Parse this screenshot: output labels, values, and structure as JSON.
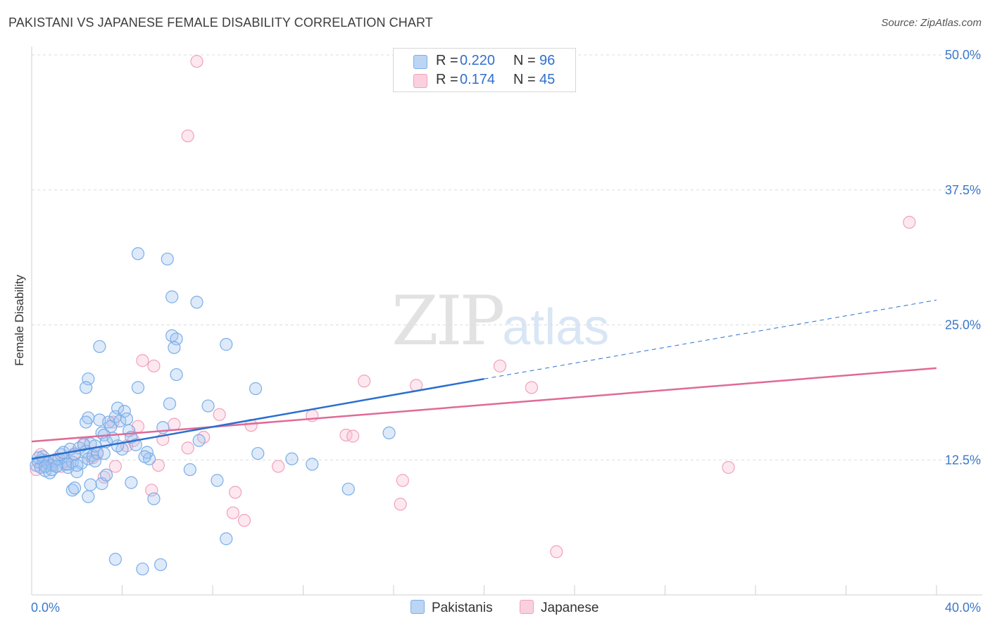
{
  "title": "PAKISTANI VS JAPANESE FEMALE DISABILITY CORRELATION CHART",
  "source": "Source: ZipAtlas.com",
  "watermark": {
    "zip": "ZIP",
    "atlas": "atlas"
  },
  "colors": {
    "pakistanis": "#7aaee8",
    "japanese": "#f2a0bb",
    "blue_line": "#2a6fcf",
    "pink_line": "#e06a97",
    "tick": "#3b78c9"
  },
  "legend": {
    "rows": [
      {
        "r_label": "R =",
        "r_value": "0.220",
        "n_label": "N =",
        "n_value": "96"
      },
      {
        "r_label": "R =",
        "r_value": "0.174",
        "n_label": "N =",
        "n_value": "45"
      }
    ],
    "series_labels": [
      "Pakistanis",
      "Japanese"
    ]
  },
  "chart_data": {
    "type": "scatter",
    "ylabel": "Female Disability",
    "xlim": [
      0,
      40
    ],
    "ylim": [
      0,
      50
    ],
    "x_tick_labels": [
      "0.0%",
      "40.0%"
    ],
    "y_ticks": [
      12.5,
      25.0,
      37.5,
      50.0
    ],
    "y_tick_labels": [
      "12.5%",
      "25.0%",
      "37.5%",
      "50.0%"
    ],
    "series": [
      {
        "name": "Pakistanis",
        "trend": {
          "x0": 0,
          "y0": 12.6,
          "x1": 20,
          "y1": 20.0,
          "dashed_to_x": 40,
          "dashed_to_y": 27.3
        },
        "points": [
          [
            0.2,
            12.0
          ],
          [
            0.3,
            12.3
          ],
          [
            0.4,
            11.8
          ],
          [
            0.5,
            12.5
          ],
          [
            0.6,
            11.5
          ],
          [
            0.7,
            12.2
          ],
          [
            0.8,
            11.3
          ],
          [
            0.9,
            12.0
          ],
          [
            1.0,
            12.4
          ],
          [
            1.1,
            11.9
          ],
          [
            1.2,
            12.6
          ],
          [
            1.3,
            13.0
          ],
          [
            1.4,
            13.2
          ],
          [
            1.5,
            12.1
          ],
          [
            1.6,
            11.8
          ],
          [
            1.7,
            13.5
          ],
          [
            1.8,
            12.3
          ],
          [
            1.9,
            13.0
          ],
          [
            2.0,
            11.4
          ],
          [
            2.1,
            13.6
          ],
          [
            2.2,
            12.2
          ],
          [
            2.3,
            13.9
          ],
          [
            2.4,
            13.3
          ],
          [
            2.5,
            12.6
          ],
          [
            2.6,
            14.0
          ],
          [
            2.7,
            12.9
          ],
          [
            2.8,
            13.8
          ],
          [
            2.9,
            13.1
          ],
          [
            3.0,
            16.2
          ],
          [
            3.1,
            15.0
          ],
          [
            3.2,
            14.8
          ],
          [
            3.3,
            14.2
          ],
          [
            3.4,
            16.0
          ],
          [
            3.5,
            15.6
          ],
          [
            3.6,
            14.5
          ],
          [
            3.7,
            16.5
          ],
          [
            3.8,
            17.3
          ],
          [
            3.9,
            16.1
          ],
          [
            4.0,
            13.5
          ],
          [
            4.1,
            17.0
          ],
          [
            4.2,
            16.3
          ],
          [
            4.3,
            15.2
          ],
          [
            2.5,
            16.4
          ],
          [
            2.4,
            16.0
          ],
          [
            2.5,
            20.0
          ],
          [
            2.4,
            19.2
          ],
          [
            3.0,
            23.0
          ],
          [
            4.7,
            31.6
          ],
          [
            6.0,
            31.1
          ],
          [
            6.2,
            27.6
          ],
          [
            7.3,
            27.1
          ],
          [
            6.2,
            24.0
          ],
          [
            6.4,
            23.7
          ],
          [
            6.3,
            22.9
          ],
          [
            8.6,
            23.2
          ],
          [
            6.4,
            20.4
          ],
          [
            4.7,
            19.2
          ],
          [
            9.9,
            19.1
          ],
          [
            6.1,
            17.7
          ],
          [
            7.8,
            17.5
          ],
          [
            5.8,
            15.5
          ],
          [
            7.4,
            14.3
          ],
          [
            10.0,
            13.1
          ],
          [
            11.5,
            12.6
          ],
          [
            12.4,
            12.1
          ],
          [
            14.0,
            9.8
          ],
          [
            15.8,
            15.0
          ],
          [
            5.2,
            12.6
          ],
          [
            5.1,
            13.2
          ],
          [
            4.4,
            10.4
          ],
          [
            3.1,
            10.3
          ],
          [
            3.3,
            11.1
          ],
          [
            2.6,
            10.2
          ],
          [
            1.8,
            9.7
          ],
          [
            2.5,
            9.1
          ],
          [
            5.4,
            8.9
          ],
          [
            7.0,
            11.6
          ],
          [
            8.2,
            10.6
          ],
          [
            8.6,
            5.2
          ],
          [
            3.7,
            3.3
          ],
          [
            4.9,
            2.4
          ],
          [
            5.7,
            2.8
          ],
          [
            1.9,
            9.9
          ],
          [
            3.8,
            13.8
          ],
          [
            1.6,
            12.1
          ],
          [
            0.5,
            12.8
          ],
          [
            0.9,
            11.6
          ],
          [
            1.1,
            11.9
          ],
          [
            0.3,
            12.7
          ],
          [
            0.6,
            11.9
          ],
          [
            2.0,
            12.0
          ],
          [
            2.8,
            12.4
          ],
          [
            3.2,
            13.1
          ],
          [
            4.4,
            14.6
          ],
          [
            4.6,
            13.9
          ],
          [
            5.0,
            12.8
          ]
        ]
      },
      {
        "name": "Japanese",
        "trend": {
          "x0": 0,
          "y0": 14.2,
          "x1": 40,
          "y1": 21.0
        },
        "points": [
          [
            7.3,
            49.4
          ],
          [
            6.9,
            42.5
          ],
          [
            38.8,
            34.5
          ],
          [
            20.7,
            21.2
          ],
          [
            4.9,
            21.7
          ],
          [
            5.4,
            21.2
          ],
          [
            14.7,
            19.8
          ],
          [
            17.0,
            19.4
          ],
          [
            22.1,
            19.2
          ],
          [
            8.3,
            16.7
          ],
          [
            12.4,
            16.6
          ],
          [
            9.7,
            15.7
          ],
          [
            13.9,
            14.8
          ],
          [
            14.2,
            14.7
          ],
          [
            6.3,
            15.8
          ],
          [
            4.7,
            15.6
          ],
          [
            3.6,
            16.0
          ],
          [
            6.9,
            13.6
          ],
          [
            5.6,
            12.0
          ],
          [
            3.7,
            11.9
          ],
          [
            0.4,
            13.0
          ],
          [
            0.7,
            12.3
          ],
          [
            1.1,
            12.6
          ],
          [
            1.9,
            13.1
          ],
          [
            2.3,
            14.0
          ],
          [
            2.7,
            12.7
          ],
          [
            4.2,
            13.8
          ],
          [
            5.8,
            14.4
          ],
          [
            10.9,
            11.9
          ],
          [
            16.4,
            10.6
          ],
          [
            16.3,
            8.4
          ],
          [
            9.0,
            9.5
          ],
          [
            8.9,
            7.6
          ],
          [
            9.4,
            6.9
          ],
          [
            5.3,
            9.7
          ],
          [
            3.2,
            10.9
          ],
          [
            30.8,
            11.8
          ],
          [
            23.2,
            4.0
          ],
          [
            7.6,
            14.6
          ],
          [
            0.2,
            11.6
          ],
          [
            0.5,
            12.1
          ],
          [
            1.5,
            12.4
          ],
          [
            2.9,
            13.2
          ],
          [
            1.3,
            11.9
          ],
          [
            4.5,
            14.3
          ]
        ]
      }
    ]
  }
}
